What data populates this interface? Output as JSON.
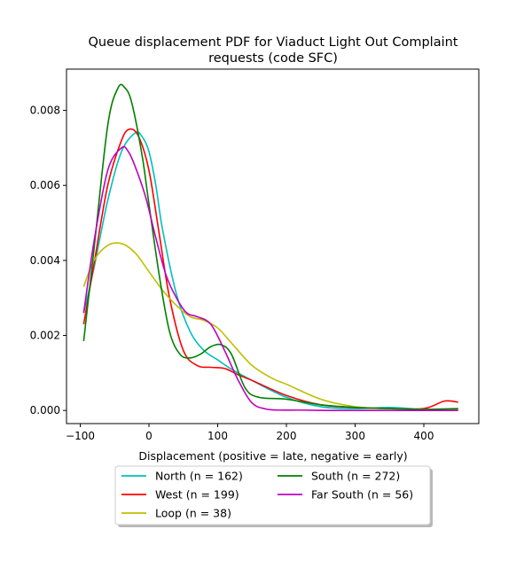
{
  "chart_data": {
    "type": "line",
    "title": "Queue displacement PDF for Viaduct Light Out Complaint requests (code SFC)",
    "title_lines": [
      "Queue displacement PDF for Viaduct Light Out Complaint",
      "requests (code SFC)"
    ],
    "xlabel": "Displacement (positive = late, negative = early)",
    "ylabel": "",
    "xlim": [
      -120,
      480
    ],
    "ylim": [
      -0.00035,
      0.0091
    ],
    "xticks": [
      -100,
      0,
      100,
      200,
      300,
      400
    ],
    "xtick_labels": [
      "−100",
      "0",
      "100",
      "200",
      "300",
      "400"
    ],
    "yticks": [
      0.0,
      0.002,
      0.004,
      0.006,
      0.008
    ],
    "ytick_labels": [
      "0.000",
      "0.002",
      "0.004",
      "0.006",
      "0.008"
    ],
    "grid": false,
    "legend_position": "below plot, 2 columns",
    "series": [
      {
        "name": "North (n = 162)",
        "color": "#00bfbf",
        "x": [
          -95,
          -80,
          -60,
          -40,
          -20,
          -10,
          0,
          10,
          20,
          40,
          60,
          80,
          100,
          120,
          150,
          200,
          250,
          300,
          350,
          400,
          450
        ],
        "y": [
          0.0026,
          0.0038,
          0.0056,
          0.0069,
          0.0074,
          0.0073,
          0.0069,
          0.006,
          0.0048,
          0.0031,
          0.0021,
          0.0016,
          0.00135,
          0.0011,
          0.0008,
          0.00035,
          0.0001,
          5e-05,
          8e-05,
          3e-05,
          2e-05
        ]
      },
      {
        "name": "West (n = 199)",
        "color": "#ff0000",
        "x": [
          -95,
          -80,
          -60,
          -40,
          -28,
          -15,
          0,
          15,
          30,
          50,
          70,
          90,
          110,
          130,
          150,
          200,
          250,
          300,
          350,
          400,
          430,
          450
        ],
        "y": [
          0.0023,
          0.0039,
          0.006,
          0.0072,
          0.0075,
          0.0073,
          0.0064,
          0.0047,
          0.003,
          0.0016,
          0.0012,
          0.00115,
          0.00112,
          0.00095,
          0.0008,
          0.0004,
          0.00015,
          8e-05,
          5e-05,
          5e-05,
          0.00025,
          0.00022
        ]
      },
      {
        "name": "Loop (n = 38)",
        "color": "#bfbf00",
        "x": [
          -95,
          -80,
          -60,
          -40,
          -20,
          0,
          20,
          40,
          60,
          80,
          100,
          120,
          150,
          180,
          200,
          250,
          300,
          350,
          400,
          450
        ],
        "y": [
          0.0033,
          0.004,
          0.0044,
          0.00445,
          0.0042,
          0.0037,
          0.0032,
          0.0028,
          0.0025,
          0.0024,
          0.0022,
          0.0018,
          0.0012,
          0.00085,
          0.0007,
          0.0003,
          0.0001,
          5e-05,
          3e-05,
          2e-05
        ]
      },
      {
        "name": "South (n = 272)",
        "color": "#008000",
        "x": [
          -95,
          -80,
          -60,
          -45,
          -35,
          -25,
          -10,
          0,
          15,
          30,
          45,
          60,
          75,
          90,
          105,
          120,
          140,
          160,
          200,
          250,
          300,
          350,
          400,
          450
        ],
        "y": [
          0.00185,
          0.0043,
          0.0076,
          0.0086,
          0.0086,
          0.0082,
          0.0068,
          0.0055,
          0.0036,
          0.0021,
          0.0015,
          0.0014,
          0.0015,
          0.0017,
          0.00175,
          0.0015,
          0.0006,
          0.00035,
          0.0003,
          0.00015,
          8e-05,
          5e-05,
          3e-05,
          5e-05
        ]
      },
      {
        "name": "Far South (n = 56)",
        "color": "#bf00bf",
        "x": [
          -95,
          -80,
          -60,
          -40,
          -30,
          -20,
          -5,
          10,
          25,
          40,
          55,
          70,
          90,
          110,
          130,
          150,
          170,
          190,
          220,
          260,
          300,
          350,
          400,
          450
        ],
        "y": [
          0.0026,
          0.0045,
          0.0064,
          0.007,
          0.0069,
          0.0065,
          0.0057,
          0.0046,
          0.0036,
          0.003,
          0.0026,
          0.0025,
          0.0023,
          0.0016,
          0.0008,
          0.0002,
          4e-05,
          1e-05,
          1e-05,
          0.0,
          0.0,
          0.0,
          0.0,
          0.0
        ]
      }
    ]
  }
}
